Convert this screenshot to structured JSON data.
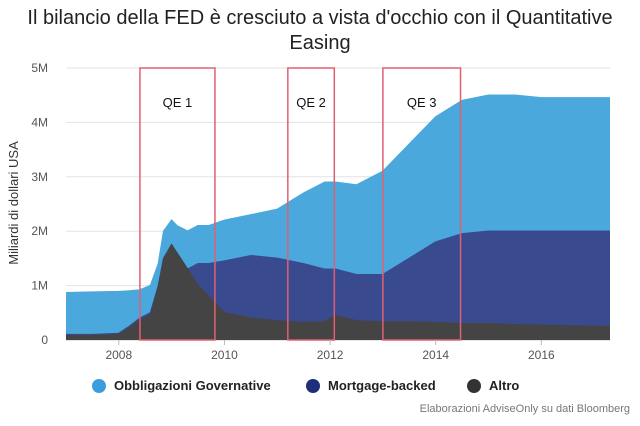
{
  "chart_data": {
    "type": "area",
    "title": "Il bilancio della FED è cresciuto a vista d'occhio con il Quantitative Easing",
    "ylabel": "Miliardi di dollari USA",
    "xlabel": "",
    "xlim": [
      2007.0,
      2017.3
    ],
    "ylim": [
      0,
      5
    ],
    "y_unit": "M",
    "x_ticks": [
      2008,
      2010,
      2012,
      2014,
      2016
    ],
    "y_ticks": [
      {
        "value": 0,
        "label": "0"
      },
      {
        "value": 1,
        "label": "1M"
      },
      {
        "value": 2,
        "label": "2M"
      },
      {
        "value": 3,
        "label": "3M"
      },
      {
        "value": 4,
        "label": "4M"
      },
      {
        "value": 5,
        "label": "5M"
      }
    ],
    "grid": true,
    "stacked": true,
    "legend_position": "bottom",
    "x": [
      2007.0,
      2007.5,
      2008.0,
      2008.2,
      2008.4,
      2008.6,
      2008.75,
      2008.85,
      2009.0,
      2009.1,
      2009.3,
      2009.5,
      2009.7,
      2010.0,
      2010.5,
      2011.0,
      2011.5,
      2011.9,
      2012.0,
      2012.1,
      2012.5,
      2013.0,
      2013.5,
      2014.0,
      2014.5,
      2015.0,
      2015.5,
      2016.0,
      2016.5,
      2017.0,
      2017.3
    ],
    "series": [
      {
        "name": "Obbligazioni Governative",
        "color": "#4aa8dd",
        "total": [
          0.87,
          0.88,
          0.89,
          0.9,
          0.92,
          1.0,
          1.4,
          2.0,
          2.2,
          2.1,
          2.0,
          2.1,
          2.1,
          2.2,
          2.3,
          2.4,
          2.7,
          2.9,
          2.9,
          2.9,
          2.85,
          3.1,
          3.6,
          4.1,
          4.4,
          4.5,
          4.5,
          4.45,
          4.45,
          4.45,
          4.45
        ]
      },
      {
        "name": "Mortgage-backed",
        "color": "#3a4a8f",
        "total": [
          0.1,
          0.1,
          0.12,
          0.25,
          0.4,
          0.5,
          1.0,
          1.5,
          1.7,
          1.6,
          1.3,
          1.4,
          1.4,
          1.45,
          1.55,
          1.5,
          1.4,
          1.3,
          1.3,
          1.3,
          1.2,
          1.2,
          1.5,
          1.8,
          1.95,
          2.0,
          2.0,
          2.0,
          2.0,
          2.0,
          2.0
        ]
      },
      {
        "name": "Altro",
        "color": "#444444",
        "total": [
          0.08,
          0.08,
          0.1,
          0.22,
          0.37,
          0.45,
          0.95,
          1.5,
          1.75,
          1.6,
          1.3,
          1.0,
          0.8,
          0.5,
          0.4,
          0.35,
          0.32,
          0.33,
          0.4,
          0.45,
          0.35,
          0.33,
          0.33,
          0.32,
          0.3,
          0.3,
          0.28,
          0.27,
          0.26,
          0.25,
          0.25
        ]
      }
    ],
    "annotations": [
      {
        "label": "QE 1",
        "x_start": 2008.4,
        "x_end": 2009.82
      },
      {
        "label": "QE 2",
        "x_start": 2011.2,
        "x_end": 2012.08
      },
      {
        "label": "QE 3",
        "x_start": 2013.0,
        "x_end": 2014.47
      }
    ],
    "annotation_color": "#e06070"
  },
  "legend": [
    {
      "label": "Obbligazioni Governative",
      "color": "#3a9ede"
    },
    {
      "label": "Mortgage-backed",
      "color": "#1e2f7a"
    },
    {
      "label": "Altro",
      "color": "#333333"
    }
  ],
  "source": "Elaborazioni AdviseOnly su dati Bloomberg"
}
